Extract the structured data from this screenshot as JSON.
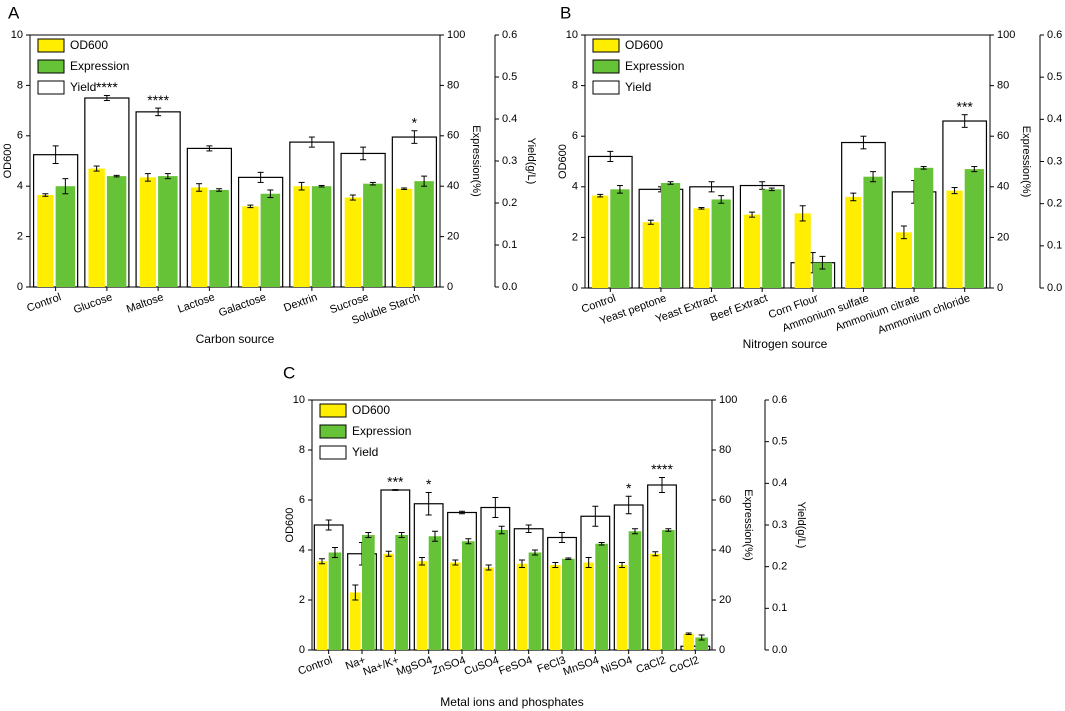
{
  "chart_data": [
    {
      "type": "bar",
      "panel": "A",
      "x_label": "Carbon source",
      "y_label": "OD600",
      "y2_label": "Expression(%)",
      "y3_label": "Yield(g/L)",
      "categories": [
        "Control",
        "Glucose",
        "Maltose",
        "Lactose",
        "Galactose",
        "Dextrin",
        "Sucrose",
        "Soluble Starch"
      ],
      "series": [
        {
          "name": "OD600",
          "color": "#ffee00",
          "axis": "y",
          "values": [
            3.65,
            4.7,
            4.35,
            3.95,
            3.2,
            4.0,
            3.55,
            3.9
          ],
          "errors": [
            0.05,
            0.1,
            0.15,
            0.15,
            0.05,
            0.15,
            0.1,
            0.03
          ]
        },
        {
          "name": "Expression",
          "color": "#66c236",
          "axis": "y2",
          "values": [
            40,
            44,
            44,
            38.5,
            37,
            40,
            41,
            42
          ],
          "errors": [
            3,
            0.3,
            1,
            0.5,
            1.5,
            0.3,
            0.5,
            2
          ]
        },
        {
          "name": "Yield",
          "color": "#ffffff",
          "axis": "y3",
          "values": [
            0.315,
            0.45,
            0.417,
            0.33,
            0.261,
            0.345,
            0.318,
            0.357
          ],
          "errors": [
            0.021,
            0.006,
            0.009,
            0.006,
            0.012,
            0.012,
            0.015,
            0.015
          ]
        }
      ],
      "annotations": [
        null,
        "****",
        "****",
        null,
        null,
        null,
        null,
        "*"
      ],
      "ylim": [
        0,
        10
      ],
      "yticks": [
        0,
        2,
        4,
        6,
        8,
        10
      ],
      "y2lim": [
        0,
        100
      ],
      "y2ticks": [
        0,
        20,
        40,
        60,
        80,
        100
      ],
      "y3lim": [
        0,
        0.6
      ],
      "y3ticks": [
        {
          "value": 0,
          "label": "0.0"
        },
        0.1,
        0.2,
        0.3,
        0.4,
        0.5,
        0.6
      ],
      "legend": "upper left"
    },
    {
      "type": "bar",
      "panel": "B",
      "x_label": "Nitrogen source",
      "y_label": "OD600",
      "y2_label": "Expression(%)",
      "y3_label": "Yield(g/L)",
      "categories": [
        "Control",
        "Yeast peptone",
        "Yeast Extract",
        "Beef Extract",
        "Corn Flour",
        "Ammonium sulfate",
        "Ammonium citrate",
        "Ammonium chloride"
      ],
      "series": [
        {
          "name": "OD600",
          "color": "#ffee00",
          "axis": "y",
          "values": [
            3.65,
            2.6,
            3.15,
            2.9,
            2.95,
            3.6,
            2.2,
            3.85
          ],
          "errors": [
            0.05,
            0.08,
            0.03,
            0.1,
            0.3,
            0.15,
            0.25,
            0.12
          ]
        },
        {
          "name": "Expression",
          "color": "#66c236",
          "axis": "y2",
          "values": [
            39,
            41.5,
            35,
            39,
            10,
            44,
            47.5,
            47
          ],
          "errors": [
            1.5,
            0.5,
            1.5,
            0.5,
            2.5,
            2,
            0.5,
            1
          ]
        },
        {
          "name": "Yield",
          "color": "#ffffff",
          "axis": "y3",
          "values": [
            0.312,
            0.234,
            0.24,
            0.243,
            0.06,
            0.345,
            0.228,
            0.396
          ],
          "errors": [
            0.012,
            0.006,
            0.012,
            0.009,
            0.024,
            0.015,
            0.027,
            0.015
          ]
        }
      ],
      "annotations": [
        null,
        null,
        null,
        null,
        null,
        null,
        null,
        "***"
      ],
      "ylim": [
        0,
        10
      ],
      "yticks": [
        0,
        2,
        4,
        6,
        8,
        10
      ],
      "y2lim": [
        0,
        100
      ],
      "y2ticks": [
        0,
        20,
        40,
        60,
        80,
        100
      ],
      "y3lim": [
        0,
        0.6
      ],
      "y3ticks": [
        {
          "value": 0,
          "label": "0.0"
        },
        0.1,
        0.2,
        0.3,
        0.4,
        0.5,
        0.6
      ],
      "legend": "upper left"
    },
    {
      "type": "bar",
      "panel": "C",
      "x_label": "Metal ions and phosphates",
      "y_label": "OD600",
      "y2_label": "Expression(%)",
      "y3_label": "Yield(g/L)",
      "categories": [
        "Control",
        "Na+",
        "Na+/K+",
        "MgSO4",
        "ZnSO4",
        "CuSO4",
        "FeSO4",
        "FeCl3",
        "MnSO4",
        "NiSO4",
        "CaCl2",
        "CoCl2"
      ],
      "series": [
        {
          "name": "OD600",
          "color": "#ffee00",
          "axis": "y",
          "values": [
            3.55,
            2.3,
            3.85,
            3.55,
            3.5,
            3.3,
            3.45,
            3.4,
            3.5,
            3.4,
            3.85,
            0.65
          ],
          "errors": [
            0.1,
            0.3,
            0.1,
            0.15,
            0.1,
            0.1,
            0.15,
            0.1,
            0.2,
            0.1,
            0.08,
            0.03
          ]
        },
        {
          "name": "Expression",
          "color": "#66c236",
          "axis": "y2",
          "values": [
            39,
            46,
            46,
            45.5,
            43.5,
            48,
            39,
            36.5,
            42.5,
            47.5,
            48,
            5
          ],
          "errors": [
            2,
            1,
            1,
            2,
            1,
            1.5,
            1,
            0.3,
            0.5,
            1,
            0.5,
            1
          ]
        },
        {
          "name": "Yield",
          "color": "#ffffff",
          "axis": "y3",
          "values": [
            0.3,
            0.231,
            0.384,
            0.351,
            0.33,
            0.342,
            0.291,
            0.27,
            0.321,
            0.348,
            0.396,
            0.009
          ],
          "errors": [
            0.012,
            0.027,
            0.001,
            0.027,
            0.003,
            0.024,
            0.009,
            0.012,
            0.024,
            0.021,
            0.018,
            0
          ]
        }
      ],
      "annotations": [
        null,
        null,
        "***",
        "*",
        null,
        null,
        null,
        null,
        null,
        "*",
        "****",
        null
      ],
      "ylim": [
        0,
        10
      ],
      "yticks": [
        0,
        2,
        4,
        6,
        8,
        10
      ],
      "y2lim": [
        0,
        100
      ],
      "y2ticks": [
        0,
        20,
        40,
        60,
        80,
        100
      ],
      "y3lim": [
        0,
        0.6
      ],
      "y3ticks": [
        {
          "value": 0,
          "label": "0.0"
        },
        0.1,
        0.2,
        0.3,
        0.4,
        0.5,
        0.6
      ],
      "legend": "upper left"
    }
  ]
}
